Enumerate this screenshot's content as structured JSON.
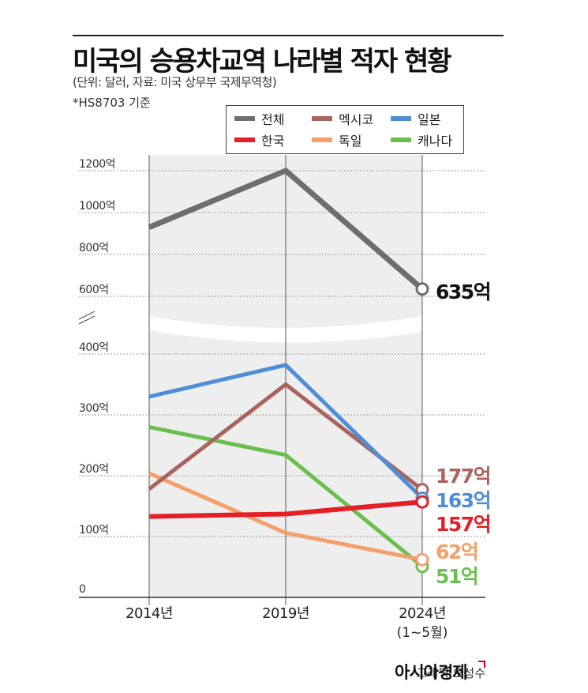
{
  "title": "미국의 승용차교역 나라별 적자 현황",
  "subtitle": "(단위: 달러, 자료: 미국 상무부 국제무역청)",
  "note": "*HS8703 기준",
  "credit": "그래픽 오성수",
  "brand": "아시아경제",
  "chart_data": {
    "type": "line",
    "x": [
      "2014년",
      "2019년",
      "2024년"
    ],
    "x_sublabels": [
      "",
      "",
      "(1~5월)"
    ],
    "y_axis_broken": true,
    "ylim_lower": [
      0,
      400
    ],
    "ylim_upper": [
      600,
      1200
    ],
    "ticks_lower": [
      {
        "value": 0,
        "label": "0"
      },
      {
        "value": 100,
        "label": "100억"
      },
      {
        "value": 200,
        "label": "200억"
      },
      {
        "value": 300,
        "label": "300억"
      },
      {
        "value": 400,
        "label": "400억"
      }
    ],
    "ticks_upper": [
      {
        "value": 600,
        "label": "600억"
      },
      {
        "value": 800,
        "label": "800억"
      },
      {
        "value": 1000,
        "label": "1000억"
      },
      {
        "value": 1200,
        "label": "1200억"
      }
    ],
    "grid": true,
    "legend_position": "top-right",
    "series": [
      {
        "name": "전체",
        "color": "#6e6e6e",
        "segment": "upper",
        "values": [
          930,
          1200,
          635
        ],
        "end_label": "635억",
        "end_label_color": "#111111"
      },
      {
        "name": "멕시코",
        "color": "#a8645e",
        "segment": "lower",
        "values": [
          178,
          350,
          177
        ],
        "end_label": "177억",
        "end_label_color": "#a8645e"
      },
      {
        "name": "일본",
        "color": "#4f8ed6",
        "segment": "lower",
        "values": [
          330,
          382,
          163
        ],
        "end_label": "163억",
        "end_label_color": "#4f8ed6"
      },
      {
        "name": "한국",
        "color": "#e41f26",
        "segment": "lower",
        "values": [
          133,
          137,
          157
        ],
        "end_label": "157억",
        "end_label_color": "#e41f26"
      },
      {
        "name": "독일",
        "color": "#f3a06a",
        "segment": "lower",
        "values": [
          204,
          106,
          62
        ],
        "end_label": "62억",
        "end_label_color": "#f3a06a"
      },
      {
        "name": "캐나다",
        "color": "#6bbf4e",
        "segment": "lower",
        "values": [
          280,
          234,
          51
        ],
        "end_label": "51억",
        "end_label_color": "#6bbf4e"
      }
    ]
  }
}
